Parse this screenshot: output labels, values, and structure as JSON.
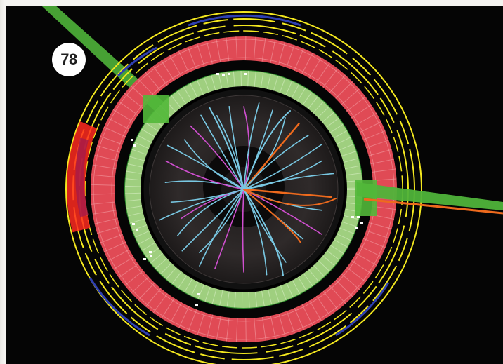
{
  "page": {
    "page_number": "78"
  },
  "figure": {
    "colors": {
      "background": "#050505",
      "muon_chambers": "#f4e81f",
      "muon_accent": "#2e3fb0",
      "hadron_calorimeter": "#e04a55",
      "em_calorimeter": "#9fcf7f",
      "tracker": "#2a2626",
      "track_cyan": "#79c8e3",
      "track_magenta": "#d04fd0",
      "track_orange": "#ee6a1d",
      "jet_green": "#52b83a",
      "energy_deposit": "#ff2a20"
    },
    "icons": [
      "event-display-image"
    ]
  }
}
